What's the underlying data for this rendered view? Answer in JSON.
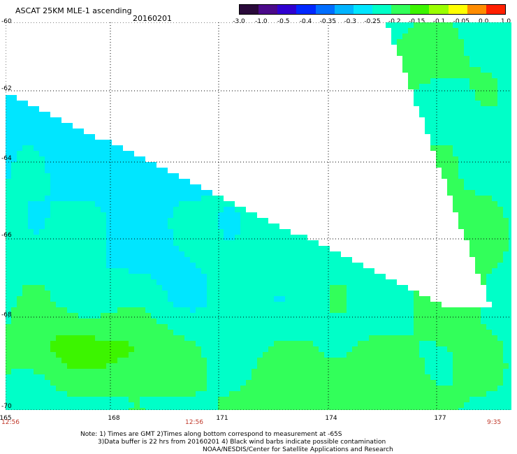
{
  "header": {
    "title": "ASCAT 25KM MLE-1 ascending",
    "date": "20160201"
  },
  "colorbar": {
    "labels": [
      "-3.0",
      "-1.0",
      "-0.5",
      "-0.4",
      "-0.35",
      "-0.3",
      "-0.25",
      "-0.2",
      "-0.15",
      "-0.1",
      "-0.05",
      "0.0",
      "1.0"
    ],
    "colors": [
      "#2a0a3a",
      "#4b0a8a",
      "#3000d0",
      "#0028ff",
      "#006eff",
      "#00b4ff",
      "#00e6ff",
      "#00ffc8",
      "#32ff5a",
      "#3cf500",
      "#9bff00",
      "#ffff00",
      "#ff8c00",
      "#ff2000"
    ]
  },
  "chart_data": {
    "type": "heatmap",
    "title": "ASCAT 25KM MLE-1 ascending",
    "subtitle": "20160201",
    "x_ticks": [
      "165",
      "168",
      "171",
      "174",
      "177"
    ],
    "y_ticks": [
      "-60",
      "-62",
      "-64",
      "-66",
      "-68",
      "-70"
    ],
    "xlim": [
      165,
      179.5
    ],
    "ylim": [
      -70,
      -60
    ],
    "grid": true,
    "color_scale": [
      "-3.0",
      "-1.0",
      "-0.5",
      "-0.4",
      "-0.35",
      "-0.3",
      "-0.25",
      "-0.2",
      "-0.15",
      "-0.1",
      "-0.05",
      "0.0",
      "1.0"
    ]
  },
  "axes": {
    "x_labels": [
      "165",
      "168",
      "171",
      "174",
      "177"
    ],
    "y_labels": [
      "60",
      "62",
      "64",
      "66",
      "68",
      "70"
    ],
    "time_labels": [
      "12:56",
      "12:56",
      "9:35"
    ]
  },
  "notes": {
    "line1": "Note: 1) Times are GMT 2)Times along bottom correspond to measurement at -65S",
    "line2": "3)Data buffer is 22 hrs from 20160201 4) Black wind barbs indicate possible contamination",
    "line3": "NOAA/NESDIS/Center for Satellite Applications and Research"
  }
}
